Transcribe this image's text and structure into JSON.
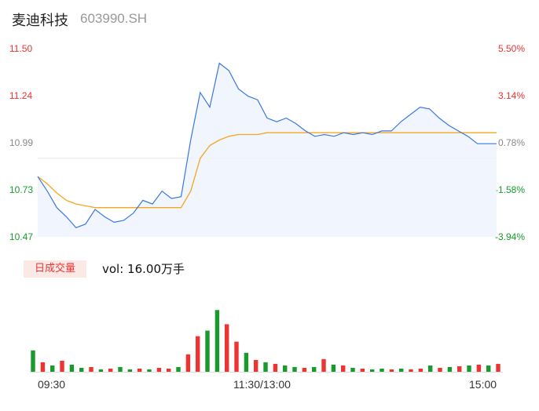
{
  "header": {
    "name": "麦迪科技",
    "code": "603990.SH"
  },
  "volume_panel": {
    "badge": "日成交量",
    "text": "vol: 16.00万手"
  },
  "colors": {
    "up": "#e33",
    "down": "#1a9a2c",
    "neutral": "#888",
    "price_line": "#3a78e0",
    "avg_line": "#f5a623"
  },
  "chart_data": [
    {
      "type": "line",
      "title": "",
      "x_ticks": [
        "09:30",
        "11:30/13:00",
        "15:00"
      ],
      "y_left_ticks": [
        "11.50",
        "11.24",
        "10.99",
        "10.73",
        "10.47"
      ],
      "y_right_ticks": [
        "5.50%",
        "3.14%",
        "0.78%",
        "-1.58%",
        "-3.94%"
      ],
      "ylim": [
        10.47,
        11.5
      ],
      "prev_close": 10.9,
      "x": [
        0,
        5,
        10,
        15,
        20,
        25,
        30,
        35,
        40,
        45,
        50,
        55,
        60,
        65,
        70,
        75,
        80,
        85,
        90,
        95,
        100,
        105,
        110,
        115,
        120,
        125,
        130,
        135,
        140,
        145,
        150,
        155,
        160,
        165,
        170,
        175,
        180,
        185,
        190,
        195,
        200,
        205,
        210,
        215,
        220,
        225,
        230,
        235,
        240
      ],
      "series": [
        {
          "values": [
            10.8,
            10.72,
            10.63,
            10.58,
            10.52,
            10.54,
            10.62,
            10.58,
            10.55,
            10.56,
            10.6,
            10.67,
            10.65,
            10.72,
            10.68,
            10.69,
            11.0,
            11.26,
            11.18,
            11.42,
            11.38,
            11.28,
            11.24,
            11.22,
            11.12,
            11.1,
            11.12,
            11.09,
            11.05,
            11.02,
            11.03,
            11.02,
            11.04,
            11.03,
            11.04,
            11.03,
            11.05,
            11.05,
            11.1,
            11.14,
            11.18,
            11.17,
            11.12,
            11.08,
            11.05,
            11.02,
            10.98,
            10.98,
            10.98
          ]
        },
        {
          "values": [
            10.8,
            10.76,
            10.71,
            10.67,
            10.65,
            10.64,
            10.63,
            10.63,
            10.63,
            10.63,
            10.63,
            10.63,
            10.63,
            10.63,
            10.63,
            10.63,
            10.72,
            10.9,
            10.97,
            11.0,
            11.02,
            11.03,
            11.03,
            11.03,
            11.04,
            11.04,
            11.04,
            11.04,
            11.04,
            11.04,
            11.04,
            11.04,
            11.04,
            11.04,
            11.04,
            11.04,
            11.04,
            11.04,
            11.04,
            11.04,
            11.04,
            11.04,
            11.04,
            11.04,
            11.04,
            11.04,
            11.04,
            11.04,
            11.04
          ]
        }
      ]
    },
    {
      "type": "bar",
      "title": "",
      "x": [
        0,
        5,
        10,
        15,
        20,
        25,
        30,
        35,
        40,
        45,
        50,
        55,
        60,
        65,
        70,
        75,
        80,
        85,
        90,
        95,
        100,
        105,
        110,
        115,
        120,
        125,
        130,
        135,
        140,
        145,
        150,
        155,
        160,
        165,
        170,
        175,
        180,
        185,
        190,
        195,
        200,
        205,
        210,
        215,
        220,
        225,
        230,
        235,
        240
      ],
      "values": [
        27,
        12,
        8,
        14,
        9,
        5,
        6,
        3,
        4,
        6,
        3,
        4,
        3,
        5,
        4,
        6,
        22,
        45,
        52,
        78,
        60,
        38,
        24,
        15,
        12,
        10,
        8,
        6,
        5,
        6,
        16,
        9,
        8,
        5,
        4,
        3,
        4,
        3,
        4,
        3,
        4,
        8,
        5,
        6,
        7,
        8,
        9,
        8,
        10
      ],
      "directions": [
        "down",
        "up",
        "down",
        "up",
        "down",
        "down",
        "up",
        "down",
        "up",
        "down",
        "down",
        "up",
        "down",
        "up",
        "up",
        "down",
        "up",
        "up",
        "down",
        "down",
        "up",
        "up",
        "down",
        "up",
        "down",
        "up",
        "down",
        "down",
        "up",
        "down",
        "up",
        "down",
        "up",
        "down",
        "up",
        "down",
        "down",
        "up",
        "down",
        "up",
        "up",
        "down",
        "up",
        "down",
        "up",
        "down",
        "up",
        "down",
        "up"
      ],
      "ylim": [
        0,
        105
      ]
    }
  ]
}
